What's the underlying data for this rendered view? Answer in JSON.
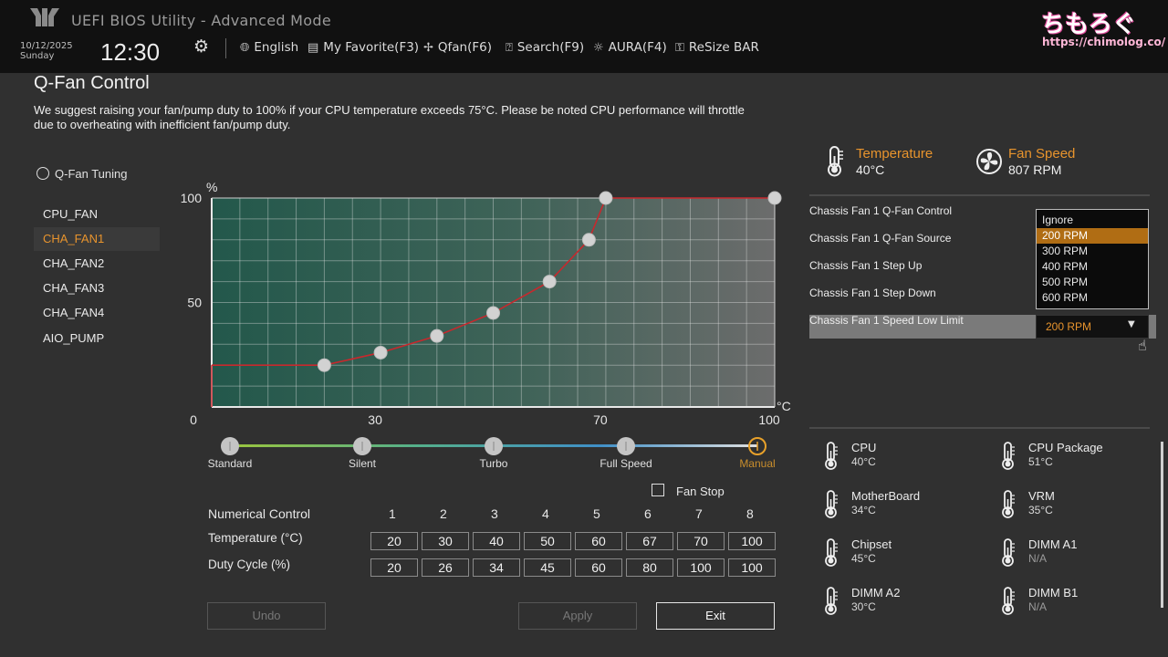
{
  "header": {
    "title": "UEFI BIOS Utility - Advanced Mode",
    "date": "10/12/2025",
    "day": "Sunday",
    "time": "12:30",
    "menu": [
      {
        "icon": "globe-icon",
        "label": "English"
      },
      {
        "icon": "favorite-icon",
        "label": "My Favorite(F3)"
      },
      {
        "icon": "fan-icon",
        "label": "Qfan(F6)"
      },
      {
        "icon": "search-icon",
        "label": "Search(F9)"
      },
      {
        "icon": "aura-icon",
        "label": "AURA(F4)"
      },
      {
        "icon": "resize-bar-icon",
        "label": "ReSize BAR"
      }
    ],
    "watermark": "ちもろぐ",
    "watermark_url": "https://chimolog.co/"
  },
  "page": {
    "title": "Q-Fan Control",
    "notice": "We suggest raising your fan/pump duty to 100% if your CPU temperature exceeds 75°C. Please be noted CPU performance will throttle due to overheating with inefficient fan/pump duty."
  },
  "sidebar": {
    "heading": "Q-Fan Tuning",
    "items": [
      {
        "label": "CPU_FAN",
        "selected": false
      },
      {
        "label": "CHA_FAN1",
        "selected": true
      },
      {
        "label": "CHA_FAN2",
        "selected": false
      },
      {
        "label": "CHA_FAN3",
        "selected": false
      },
      {
        "label": "CHA_FAN4",
        "selected": false
      },
      {
        "label": "AIO_PUMP",
        "selected": false
      }
    ]
  },
  "chart_data": {
    "type": "line",
    "x": [
      20,
      30,
      40,
      50,
      60,
      67,
      70,
      100
    ],
    "y": [
      20,
      26,
      34,
      45,
      60,
      80,
      100,
      100
    ],
    "xlim": [
      0,
      100
    ],
    "ylim": [
      0,
      100
    ],
    "xticks": [
      "0",
      "30",
      "70",
      "100"
    ],
    "yticks": [
      "50",
      "100"
    ],
    "xunit": "°C",
    "yunit": "%",
    "line_color": "#c8282d",
    "grid": true
  },
  "modes": {
    "items": [
      "Standard",
      "Silent",
      "Turbo",
      "Full Speed",
      "Manual"
    ],
    "active": "Manual",
    "active_color": "#e8a12a"
  },
  "fan_stop": {
    "label": "Fan Stop",
    "checked": false
  },
  "numerical": {
    "title": "Numerical Control",
    "columns": [
      "1",
      "2",
      "3",
      "4",
      "5",
      "6",
      "7",
      "8"
    ],
    "temp_label": "Temperature (°C)",
    "temps": [
      "20",
      "30",
      "40",
      "50",
      "60",
      "67",
      "70",
      "100"
    ],
    "duty_label": "Duty Cycle (%)",
    "duties": [
      "20",
      "26",
      "34",
      "45",
      "60",
      "80",
      "100",
      "100"
    ]
  },
  "buttons": {
    "undo": "Undo",
    "apply": "Apply",
    "exit": "Exit"
  },
  "status": {
    "temperature_label": "Temperature",
    "temperature_value": "40°C",
    "fanspeed_label": "Fan Speed",
    "fanspeed_value": "807 RPM",
    "accent": "#e8942d"
  },
  "settings": {
    "items": [
      "Chassis Fan 1 Q-Fan Control",
      "Chassis Fan 1 Q-Fan Source",
      "Chassis Fan 1 Step Up",
      "Chassis Fan 1 Step Down",
      "Chassis Fan 1 Speed Low Limit"
    ],
    "low_limit_value": "200 RPM",
    "dropdown_options": [
      "Ignore",
      "200 RPM",
      "300 RPM",
      "400 RPM",
      "500 RPM",
      "600 RPM"
    ],
    "dropdown_selected": "200 RPM"
  },
  "sensors": [
    {
      "name": "CPU",
      "value": "40°C"
    },
    {
      "name": "CPU Package",
      "value": "51°C"
    },
    {
      "name": "MotherBoard",
      "value": "34°C"
    },
    {
      "name": "VRM",
      "value": "35°C"
    },
    {
      "name": "Chipset",
      "value": "45°C"
    },
    {
      "name": "DIMM A1",
      "value": "N/A"
    },
    {
      "name": "DIMM A2",
      "value": "30°C"
    },
    {
      "name": "DIMM B1",
      "value": "N/A"
    }
  ]
}
